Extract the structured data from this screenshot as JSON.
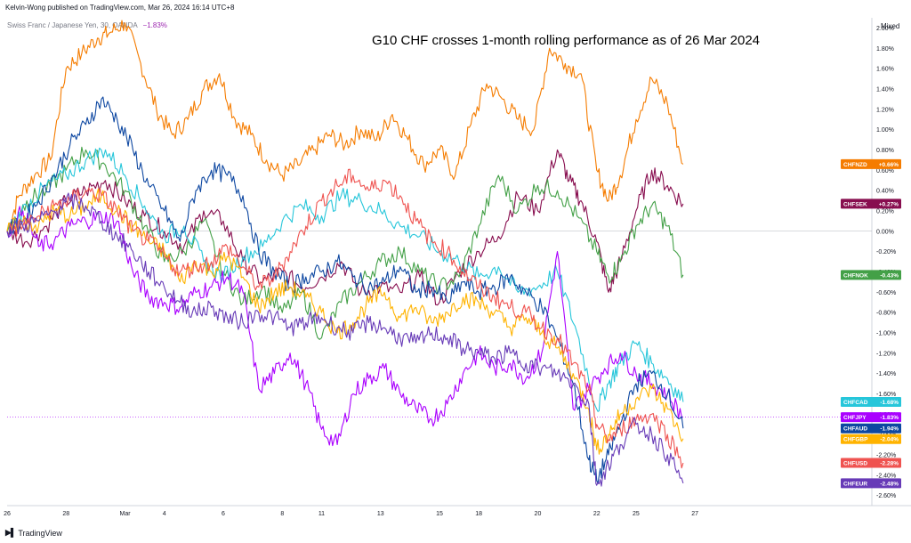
{
  "header": {
    "publisher": "Kelvin-Wong published on TradingView.com, Mar 26, 2024 16:14 UTC+8",
    "symbol": "Swiss Franc / Japanese Yen, 30, OANDA",
    "symbol_change": "−1.83%",
    "scale_mode": "Mixed"
  },
  "footer": {
    "brand": "TradingView",
    "logo": "tv-logo-icon"
  },
  "chart_data": {
    "type": "line",
    "title": "G10 CHF crosses 1-month rolling performance as of 26 Mar 2024",
    "ylim": [
      -2.7,
      2.1
    ],
    "ylabel": "",
    "y_ticks": [
      "2.00%",
      "1.80%",
      "1.60%",
      "1.40%",
      "1.20%",
      "1.00%",
      "0.80%",
      "0.60%",
      "0.40%",
      "0.20%",
      "0.00%",
      "-0.20%",
      "-0.40%",
      "-0.60%",
      "-0.80%",
      "-1.00%",
      "-1.20%",
      "-1.40%",
      "-1.60%",
      "-1.80%",
      "-2.00%",
      "-2.20%",
      "-2.40%",
      "-2.60%"
    ],
    "y_tick_values": [
      2.0,
      1.8,
      1.6,
      1.4,
      1.2,
      1.0,
      0.8,
      0.6,
      0.4,
      0.2,
      0.0,
      -0.2,
      -0.4,
      -0.6,
      -0.8,
      -1.0,
      -1.2,
      -1.4,
      -1.6,
      -1.8,
      -2.0,
      -2.2,
      -2.4,
      -2.6
    ],
    "x_range": [
      0,
      22
    ],
    "x_ticks": [
      {
        "label": "26",
        "x": 0
      },
      {
        "label": "28",
        "x": 1.5
      },
      {
        "label": "Mar",
        "x": 3
      },
      {
        "label": "4",
        "x": 4
      },
      {
        "label": "6",
        "x": 5.5
      },
      {
        "label": "8",
        "x": 7
      },
      {
        "label": "11",
        "x": 8
      },
      {
        "label": "13",
        "x": 9.5
      },
      {
        "label": "15",
        "x": 11
      },
      {
        "label": "18",
        "x": 12
      },
      {
        "label": "20",
        "x": 13.5
      },
      {
        "label": "22",
        "x": 15
      },
      {
        "label": "25",
        "x": 16
      },
      {
        "label": "27",
        "x": 17.5
      }
    ],
    "grid": false,
    "zero_line": true,
    "series": [
      {
        "name": "CHFNZD",
        "last": "+0.66%",
        "color": "#f57c00",
        "x": [
          0,
          0.3,
          0.7,
          1.1,
          1.5,
          1.9,
          2.3,
          2.6,
          3.0,
          3.4,
          3.8,
          4.2,
          4.6,
          5.0,
          5.4,
          5.8,
          6.2,
          6.6,
          7.0,
          7.4,
          7.8,
          8.2,
          8.6,
          9.0,
          9.4,
          9.8,
          10.2,
          10.6,
          11.0,
          11.4,
          11.8,
          12.2,
          12.6,
          13.0,
          13.4,
          13.8,
          14.2,
          14.6,
          15.0,
          15.3,
          15.6,
          16.0,
          16.4,
          16.8,
          17.2
        ],
        "y": [
          0.0,
          0.35,
          0.55,
          0.7,
          1.6,
          1.75,
          1.9,
          1.95,
          2.05,
          1.65,
          1.2,
          0.95,
          1.1,
          1.4,
          1.55,
          1.1,
          0.95,
          0.7,
          0.55,
          0.65,
          0.8,
          0.95,
          0.85,
          1.0,
          0.9,
          1.15,
          0.9,
          0.65,
          0.8,
          0.55,
          1.05,
          1.45,
          1.3,
          1.1,
          1.0,
          1.8,
          1.65,
          1.55,
          0.6,
          0.3,
          0.55,
          1.1,
          1.5,
          1.25,
          0.66
        ]
      },
      {
        "name": "CHFSEK",
        "last": "+0.27%",
        "color": "#880e4f",
        "x": [
          0,
          0.5,
          1.0,
          1.5,
          2.0,
          2.5,
          3.0,
          3.5,
          4.0,
          4.5,
          5.0,
          5.5,
          6.0,
          6.5,
          7.0,
          7.5,
          8.0,
          8.5,
          9.0,
          9.5,
          10.0,
          10.5,
          11.0,
          11.5,
          12.0,
          12.5,
          13.0,
          13.5,
          14.0,
          14.3,
          14.6,
          15.0,
          15.3,
          15.6,
          16.0,
          16.4,
          16.8,
          17.2
        ],
        "y": [
          0.0,
          -0.1,
          0.05,
          0.3,
          0.4,
          0.5,
          0.3,
          0.15,
          0.0,
          -0.15,
          0.2,
          0.1,
          -0.3,
          -0.5,
          -0.4,
          -0.55,
          -0.45,
          -0.3,
          -0.6,
          -0.55,
          -0.6,
          -0.45,
          -0.7,
          -0.4,
          -0.2,
          -0.05,
          0.35,
          0.2,
          0.8,
          0.5,
          0.3,
          -0.1,
          -0.6,
          -0.3,
          0.2,
          0.6,
          0.45,
          0.27
        ]
      },
      {
        "name": "CHFNOK",
        "last": "-0.43%",
        "color": "#43a047",
        "x": [
          0,
          0.5,
          1.0,
          1.5,
          2.0,
          2.5,
          3.0,
          3.5,
          4.0,
          4.5,
          5.0,
          5.5,
          6.0,
          6.5,
          7.0,
          7.5,
          8.0,
          8.5,
          9.0,
          9.5,
          10.0,
          10.5,
          11.0,
          11.5,
          12.0,
          12.5,
          13.0,
          13.5,
          14.0,
          14.5,
          15.0,
          15.3,
          15.6,
          16.0,
          16.4,
          16.8,
          17.2
        ],
        "y": [
          0.0,
          0.3,
          0.4,
          0.6,
          0.8,
          0.65,
          0.4,
          0.05,
          -0.3,
          -0.2,
          0.1,
          -0.4,
          -0.7,
          -0.55,
          -0.8,
          -0.6,
          -1.05,
          -0.7,
          -0.5,
          -0.3,
          -0.2,
          -0.4,
          -0.55,
          -0.45,
          0.05,
          0.55,
          0.2,
          0.45,
          0.4,
          0.15,
          -0.2,
          -0.45,
          -0.3,
          0.05,
          0.25,
          0.05,
          -0.43
        ]
      },
      {
        "name": "CHFCAD",
        "last": "-1.68%",
        "color": "#26c6da",
        "x": [
          0,
          0.5,
          1.0,
          1.5,
          2.0,
          2.5,
          3.0,
          3.5,
          4.0,
          4.5,
          5.0,
          5.5,
          6.0,
          6.5,
          7.0,
          7.5,
          8.0,
          8.5,
          9.0,
          9.5,
          10.0,
          10.5,
          11.0,
          11.5,
          12.0,
          12.5,
          13.0,
          13.5,
          14.0,
          14.5,
          15.0,
          15.3,
          15.6,
          16.0,
          16.4,
          16.8,
          17.2
        ],
        "y": [
          0.0,
          0.25,
          0.45,
          0.55,
          0.7,
          0.8,
          0.55,
          0.25,
          -0.05,
          0.05,
          -0.3,
          -0.45,
          -0.25,
          -0.15,
          0.1,
          0.25,
          0.15,
          0.35,
          0.3,
          0.2,
          0.05,
          -0.05,
          -0.2,
          -0.3,
          -0.45,
          -0.35,
          -0.6,
          -0.55,
          -0.4,
          -1.0,
          -1.75,
          -1.5,
          -1.3,
          -1.1,
          -1.3,
          -1.45,
          -1.68
        ]
      },
      {
        "name": "CHFJPY",
        "last": "-1.83%",
        "color": "#aa00ff",
        "x": [
          0,
          0.4,
          0.8,
          1.2,
          1.6,
          2.0,
          2.4,
          2.8,
          3.2,
          3.6,
          4.0,
          4.4,
          4.8,
          5.2,
          5.6,
          6.0,
          6.4,
          6.8,
          7.2,
          7.6,
          8.0,
          8.4,
          8.8,
          9.2,
          9.6,
          10.0,
          10.4,
          10.8,
          11.2,
          11.6,
          12.0,
          12.4,
          12.8,
          13.2,
          13.6,
          14.0,
          14.4,
          14.8,
          15.2,
          15.6,
          16.0,
          16.4,
          16.8,
          17.2
        ],
        "y": [
          0.0,
          0.2,
          -0.15,
          -0.1,
          0.05,
          0.1,
          0.15,
          0.1,
          -0.4,
          -0.65,
          -0.7,
          -0.75,
          -0.6,
          -0.55,
          -0.45,
          -0.6,
          -1.55,
          -1.4,
          -1.2,
          -1.5,
          -1.95,
          -2.1,
          -1.6,
          -1.45,
          -1.35,
          -1.6,
          -1.75,
          -1.85,
          -1.7,
          -1.4,
          -1.2,
          -1.35,
          -1.3,
          -1.45,
          -1.2,
          -0.2,
          -1.75,
          -1.55,
          -1.35,
          -1.2,
          -1.4,
          -1.5,
          -1.6,
          -1.83
        ]
      },
      {
        "name": "CHFAUD",
        "last": "-1.94%",
        "color": "#0d47a1",
        "x": [
          0,
          0.4,
          0.8,
          1.2,
          1.6,
          2.0,
          2.4,
          2.8,
          3.2,
          3.6,
          4.0,
          4.4,
          4.8,
          5.2,
          5.6,
          6.0,
          6.4,
          6.8,
          7.2,
          7.6,
          8.0,
          8.4,
          8.8,
          9.2,
          9.6,
          10.0,
          10.4,
          10.8,
          11.2,
          11.6,
          12.0,
          12.4,
          12.8,
          13.2,
          13.6,
          14.0,
          14.4,
          14.8,
          15.0,
          15.3,
          15.6,
          16.0,
          16.4,
          16.8,
          17.2
        ],
        "y": [
          0.0,
          0.1,
          0.3,
          0.55,
          0.85,
          1.05,
          1.3,
          1.1,
          0.8,
          0.45,
          0.2,
          -0.1,
          0.4,
          0.6,
          0.55,
          0.35,
          -0.2,
          -0.4,
          -0.55,
          -0.45,
          -0.4,
          -0.3,
          -0.45,
          -0.55,
          -0.5,
          -0.35,
          -0.6,
          -0.55,
          -0.7,
          -0.5,
          -0.6,
          -0.55,
          -0.45,
          -0.6,
          -0.75,
          -1.05,
          -1.5,
          -2.25,
          -2.45,
          -2.2,
          -1.9,
          -1.5,
          -1.4,
          -1.6,
          -1.94
        ]
      },
      {
        "name": "CHFGBP",
        "last": "-2.04%",
        "color": "#ffb300",
        "x": [
          0,
          0.4,
          0.8,
          1.2,
          1.6,
          2.0,
          2.4,
          2.8,
          3.2,
          3.6,
          4.0,
          4.4,
          4.8,
          5.2,
          5.6,
          6.0,
          6.4,
          6.8,
          7.2,
          7.6,
          8.0,
          8.4,
          8.8,
          9.2,
          9.6,
          10.0,
          10.4,
          10.8,
          11.2,
          11.6,
          12.0,
          12.4,
          12.8,
          13.2,
          13.6,
          14.0,
          14.4,
          14.8,
          15.0,
          15.3,
          15.6,
          16.0,
          16.4,
          16.8,
          17.2
        ],
        "y": [
          0.0,
          0.1,
          0.05,
          0.2,
          0.15,
          0.25,
          0.35,
          0.2,
          0.05,
          -0.1,
          -0.2,
          -0.5,
          -0.3,
          -0.4,
          -0.25,
          -0.45,
          -0.75,
          -0.6,
          -0.55,
          -0.65,
          -0.8,
          -1.0,
          -0.9,
          -0.7,
          -0.6,
          -0.85,
          -0.75,
          -0.9,
          -0.8,
          -0.65,
          -0.7,
          -0.8,
          -0.95,
          -0.85,
          -1.0,
          -1.15,
          -1.4,
          -1.75,
          -2.15,
          -2.0,
          -1.8,
          -1.65,
          -1.55,
          -1.75,
          -2.04
        ]
      },
      {
        "name": "CHFUSD",
        "last": "-2.28%",
        "color": "#ef5350",
        "x": [
          0,
          0.4,
          0.8,
          1.2,
          1.6,
          2.0,
          2.4,
          2.8,
          3.2,
          3.6,
          4.0,
          4.4,
          4.8,
          5.2,
          5.6,
          6.0,
          6.4,
          6.8,
          7.2,
          7.6,
          8.0,
          8.4,
          8.8,
          9.2,
          9.6,
          10.0,
          10.4,
          10.8,
          11.2,
          11.6,
          12.0,
          12.4,
          12.8,
          13.2,
          13.6,
          14.0,
          14.4,
          14.8,
          15.0,
          15.3,
          15.6,
          16.0,
          16.4,
          16.8,
          17.2
        ],
        "y": [
          0.0,
          0.05,
          0.15,
          0.25,
          0.3,
          0.4,
          0.35,
          0.2,
          0.0,
          -0.1,
          -0.25,
          -0.4,
          -0.35,
          -0.3,
          -0.15,
          -0.35,
          -0.55,
          -0.45,
          -0.2,
          0.05,
          0.3,
          0.45,
          0.55,
          0.4,
          0.5,
          0.35,
          0.1,
          -0.1,
          -0.2,
          -0.4,
          -0.55,
          -0.65,
          -0.75,
          -0.8,
          -0.95,
          -1.05,
          -1.3,
          -1.55,
          -1.9,
          -2.05,
          -1.95,
          -1.85,
          -1.8,
          -2.0,
          -2.28
        ]
      },
      {
        "name": "CHFEUR",
        "last": "-2.48%",
        "color": "#673ab7",
        "x": [
          0,
          0.4,
          0.8,
          1.2,
          1.6,
          2.0,
          2.4,
          2.8,
          3.2,
          3.6,
          4.0,
          4.4,
          4.8,
          5.2,
          5.6,
          6.0,
          6.4,
          6.8,
          7.2,
          7.6,
          8.0,
          8.4,
          8.8,
          9.2,
          9.6,
          10.0,
          10.4,
          10.8,
          11.2,
          11.6,
          12.0,
          12.4,
          12.8,
          13.2,
          13.6,
          14.0,
          14.4,
          14.8,
          15.0,
          15.3,
          15.6,
          16.0,
          16.4,
          16.8,
          17.2
        ],
        "y": [
          0.0,
          0.05,
          0.1,
          0.2,
          0.3,
          0.25,
          0.1,
          -0.05,
          -0.2,
          -0.4,
          -0.55,
          -0.7,
          -0.8,
          -0.75,
          -0.85,
          -0.9,
          -0.8,
          -0.85,
          -0.95,
          -0.9,
          -0.85,
          -0.95,
          -1.0,
          -0.9,
          -0.95,
          -1.05,
          -1.1,
          -1.0,
          -1.05,
          -1.15,
          -1.2,
          -1.25,
          -1.2,
          -1.3,
          -1.35,
          -1.4,
          -1.5,
          -1.7,
          -2.5,
          -2.3,
          -2.1,
          -1.9,
          -2.0,
          -2.2,
          -2.48
        ]
      }
    ]
  }
}
